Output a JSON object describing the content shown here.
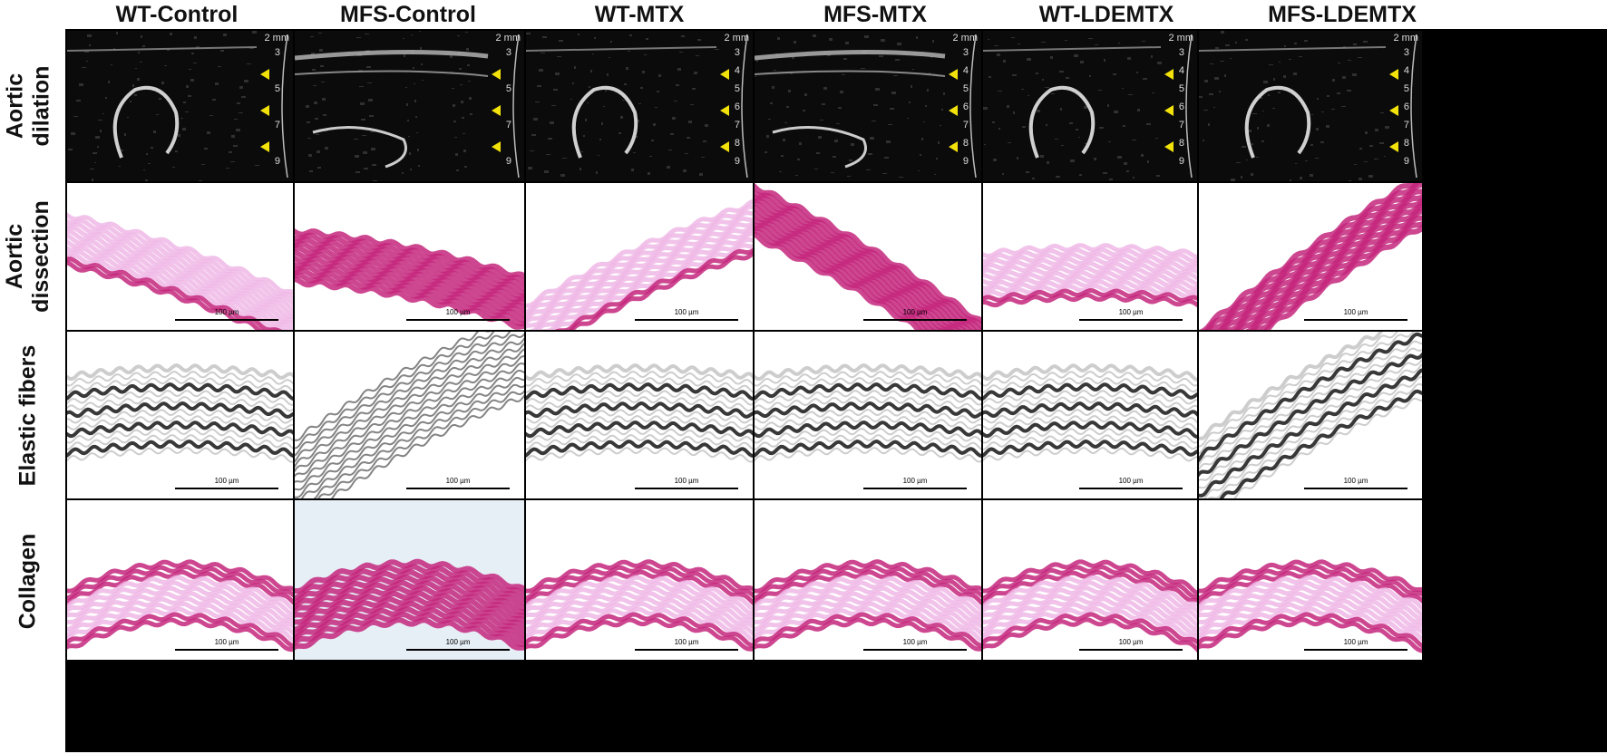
{
  "columns": [
    "WT-Control",
    "MFS-Control",
    "WT-MTX",
    "MFS-MTX",
    "WT-LDEMTX",
    "MFS-LDEMTX"
  ],
  "rows": [
    {
      "lines": [
        "Aortic",
        "dilation"
      ]
    },
    {
      "lines": [
        "Aortic",
        "dissection"
      ]
    },
    {
      "lines": [
        "Elastic fibers"
      ]
    },
    {
      "lines": [
        "Collagen"
      ]
    }
  ],
  "scale_label": "100 µm",
  "ruler": {
    "mm_label": "2 mm",
    "ticks": [
      "3",
      "4",
      "5",
      "6",
      "7",
      "8",
      "9"
    ]
  },
  "colors": {
    "ultrasound_bg": "#0b0b0b",
    "he_light": "#f0b8e6",
    "he_dark": "#c4277d",
    "elastic_dark": "#222222",
    "elastic_light": "#c8c8c8",
    "arrow": "#f2e20a"
  }
}
